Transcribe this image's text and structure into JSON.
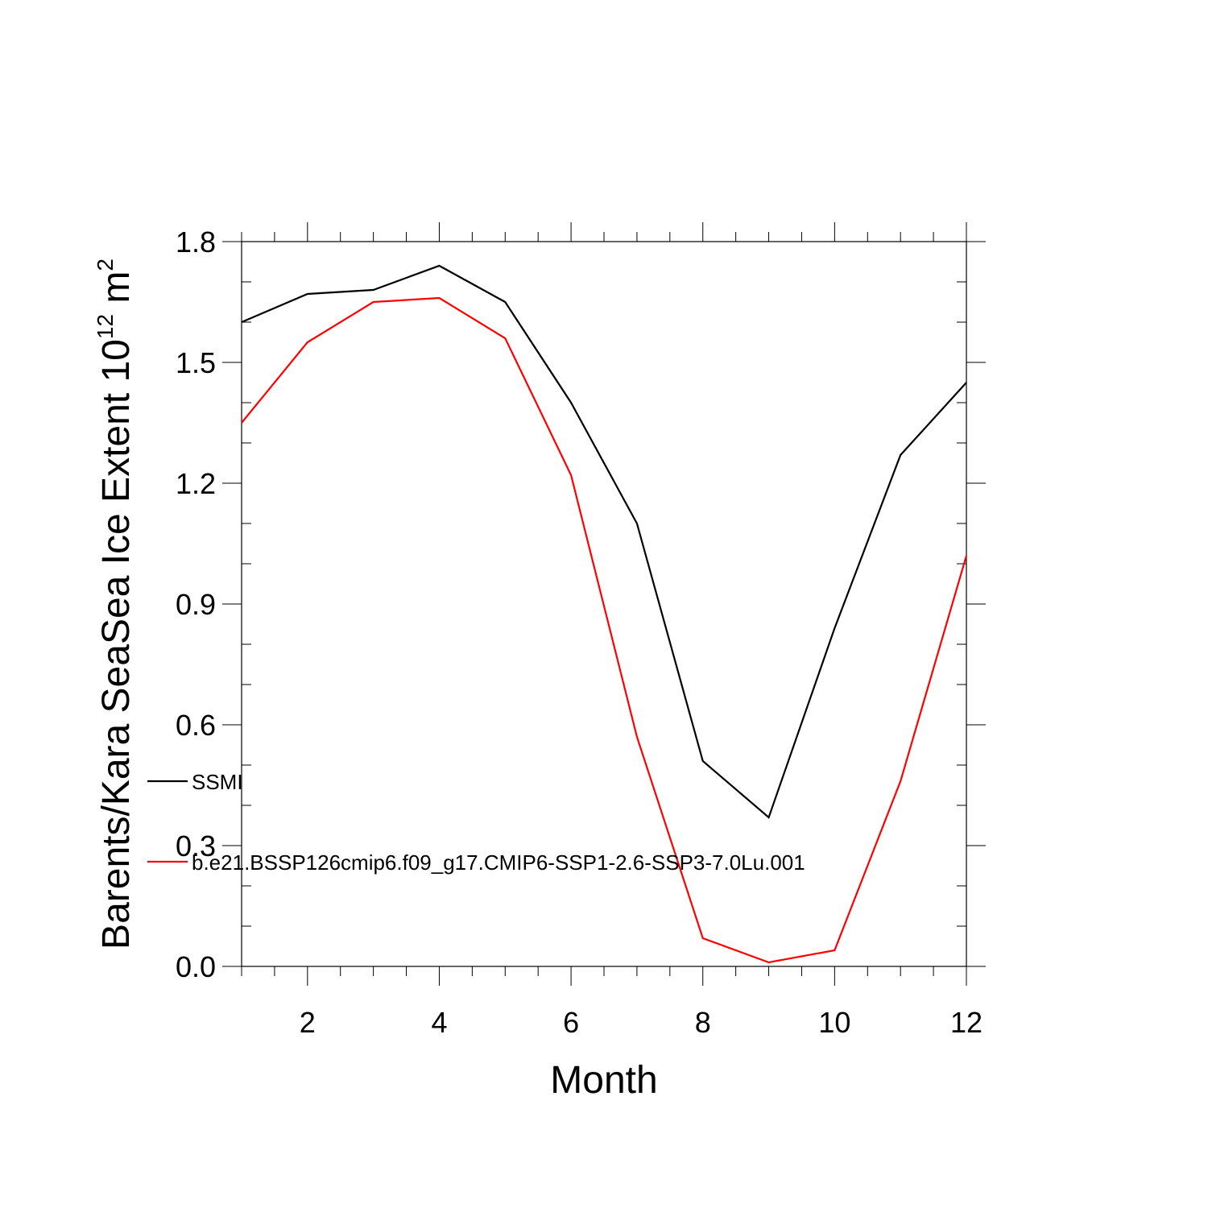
{
  "chart_data": {
    "type": "line",
    "title": "",
    "xlabel": "Month",
    "ylabel": {
      "prefix": "Barents/Kara SeaSea Ice Extent 10",
      "exponent": "12",
      "unit": " m",
      "unit_exponent": "2"
    },
    "xlim": [
      1,
      12
    ],
    "ylim": [
      0.0,
      1.8
    ],
    "xticks": [
      2,
      4,
      6,
      8,
      10,
      12
    ],
    "xtick_labels": [
      "2",
      "4",
      "6",
      "8",
      "10",
      "12"
    ],
    "yticks": [
      0.0,
      0.3,
      0.6,
      0.9,
      1.2,
      1.5,
      1.8
    ],
    "ytick_labels": [
      "0.0",
      "0.3",
      "0.6",
      "0.9",
      "1.2",
      "1.5",
      "1.8"
    ],
    "grid": false,
    "legend_position": "left",
    "x": [
      1,
      2,
      3,
      4,
      5,
      6,
      7,
      8,
      9,
      10,
      11,
      12
    ],
    "series": [
      {
        "name": "SSMI",
        "color": "#000000",
        "values": [
          1.6,
          1.67,
          1.68,
          1.74,
          1.65,
          1.4,
          1.1,
          0.51,
          0.37,
          0.84,
          1.27,
          1.45
        ]
      },
      {
        "name": "b.e21.BSSP126cmip6.f09_g17.CMIP6-SSP1-2.6-SSP3-7.0Lu.001",
        "color": "#ff0000",
        "values": [
          1.35,
          1.55,
          1.65,
          1.66,
          1.56,
          1.22,
          0.57,
          0.07,
          0.01,
          0.04,
          0.46,
          1.02
        ]
      }
    ]
  }
}
